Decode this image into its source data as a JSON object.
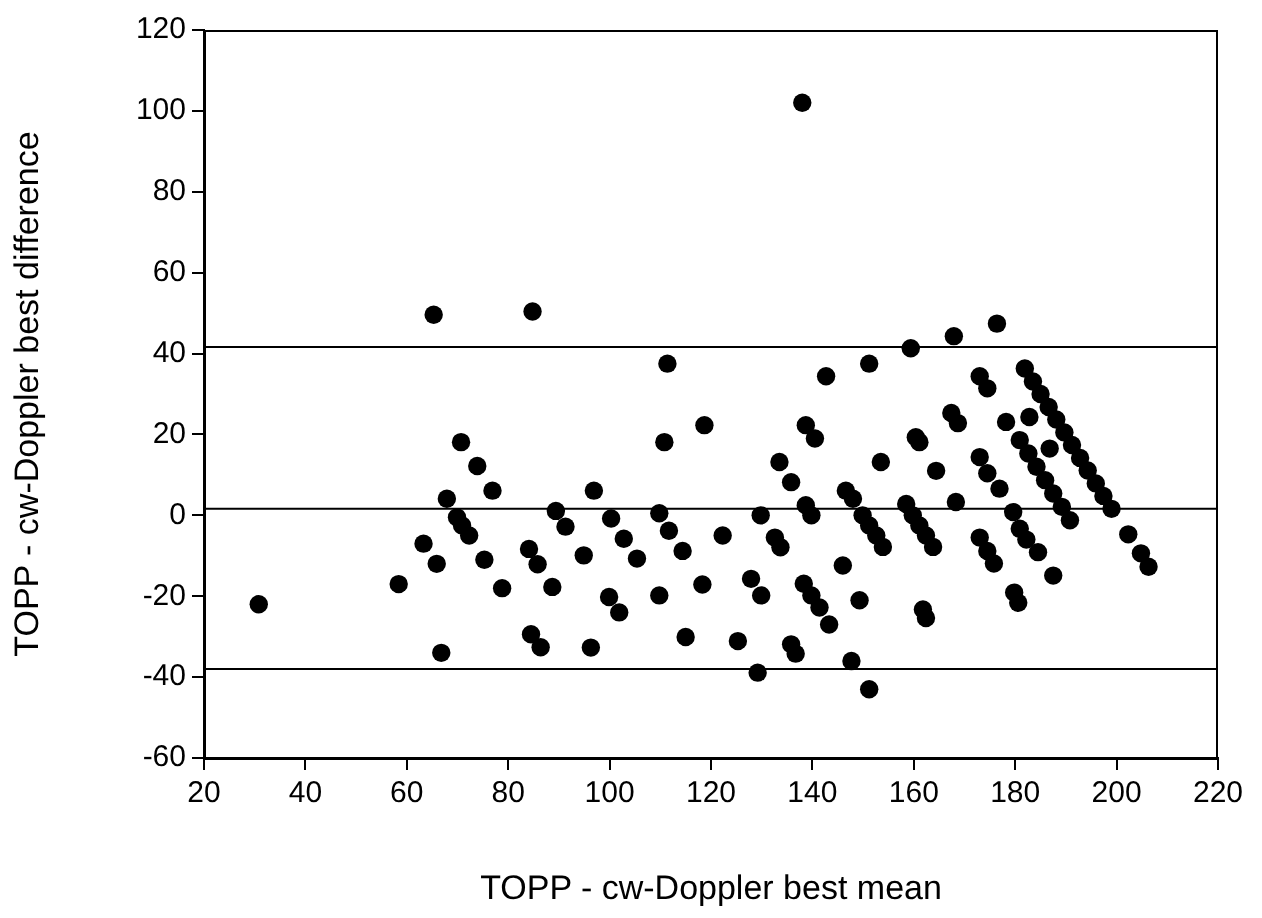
{
  "chart_data": {
    "type": "scatter",
    "xlabel": "TOPP - cw-Doppler best mean",
    "ylabel": "TOPP - cw-Doppler best difference",
    "xlim": [
      20,
      220
    ],
    "xticks": [
      20,
      40,
      60,
      80,
      100,
      120,
      140,
      160,
      180,
      200,
      220
    ],
    "ylim": [
      -60,
      120
    ],
    "yticks": [
      -60,
      -40,
      -20,
      0,
      20,
      40,
      60,
      80,
      100,
      120
    ],
    "grid": false,
    "legend": false,
    "marker": "circle",
    "ref_lines": [
      {
        "axis": "y",
        "value": 41.6,
        "color": "#000000"
      },
      {
        "axis": "y",
        "value": 1.6,
        "color": "#000000"
      },
      {
        "axis": "y",
        "value": -38,
        "color": "#000000"
      }
    ],
    "series": [
      {
        "color": "#000000",
        "x": [
          65.3,
          70.7,
          73.9,
          76.9,
          67.9,
          69.9,
          70.9,
          72.3,
          63.3,
          65.9,
          75.3,
          58.4,
          78.8,
          30.8,
          66.8,
          84.8,
          111.4,
          142.7,
          118.7,
          138.7,
          140.5,
          110.8,
          133.5,
          135.8,
          96.9,
          146.6,
          89.4,
          109.8,
          111.7,
          100.3,
          129.8,
          138.7,
          139.8,
          91.3,
          102.8,
          122.3,
          132.6,
          133.7,
          84.1,
          85.8,
          94.9,
          105.4,
          114.4,
          146,
          88.7,
          99.9,
          101.9,
          109.8,
          118.3,
          127.9,
          129.9,
          138.3,
          139.8,
          141.4,
          143.3,
          149.3,
          84.5,
          86.4,
          96.3,
          115,
          125.3,
          135.8,
          136.7,
          129.2,
          147.7,
          138,
          151.2,
          159.4,
          167.9,
          176.4,
          173,
          174.5,
          181.9,
          183.5,
          185,
          186.6,
          188.1,
          189.7,
          191.2,
          192.8,
          194.3,
          195.9,
          197.4,
          199,
          167.4,
          168.7,
          178.2,
          182.8,
          160.4,
          161.1,
          186.8,
          180.9,
          182.6,
          184.2,
          185.9,
          187.5,
          189.2,
          190.8,
          153.5,
          164.4,
          173,
          174.5,
          176.9,
          148,
          168.3,
          179.6,
          149.9,
          151.2,
          152.6,
          153.9,
          158.5,
          159.8,
          161.1,
          162.4,
          163.8,
          180.9,
          182.2,
          184.5,
          173,
          174.5,
          175.8,
          202.3,
          204.8,
          206.3,
          161.8,
          162.4,
          179.8,
          180.6,
          187.5,
          151.2
        ],
        "values": [
          49.6,
          18.1,
          12.2,
          6.1,
          4.1,
          -0.5,
          -2.5,
          -5,
          -7,
          -12,
          -11,
          -17,
          -18,
          -22,
          -34,
          50.4,
          37.5,
          34.4,
          22.3,
          22.3,
          19,
          18.1,
          13.2,
          8.2,
          6.1,
          6.1,
          1.1,
          0.5,
          -3.8,
          -0.8,
          0,
          2.5,
          0,
          -2.8,
          -5.8,
          -5,
          -5.5,
          -7.9,
          -8.3,
          -12.1,
          -9.9,
          -10.7,
          -8.8,
          -12.4,
          -17.7,
          -20.2,
          -24,
          -19.8,
          -17.1,
          -15.7,
          -19.8,
          -16.9,
          -19.8,
          -22.8,
          -27,
          -21,
          -29.4,
          -32.6,
          -32.7,
          -30.1,
          -31.1,
          -31.9,
          -34.2,
          -38.9,
          -36,
          102,
          37.5,
          41.3,
          44.3,
          47.4,
          34.4,
          31.4,
          36.3,
          33.1,
          30,
          26.8,
          23.7,
          20.5,
          17.4,
          14.2,
          11.1,
          7.9,
          4.8,
          1.6,
          25.3,
          22.8,
          23.1,
          24.3,
          19.3,
          18.1,
          16.5,
          18.6,
          15.3,
          12,
          8.7,
          5.4,
          2.1,
          -1.2,
          13.2,
          11,
          14.4,
          10.4,
          6.6,
          4.1,
          3.3,
          0.8,
          0,
          -2.5,
          -5,
          -7.8,
          2.8,
          0,
          -2.5,
          -5,
          -7.8,
          -3.3,
          -6,
          -9.1,
          -5.5,
          -8.8,
          -11.9,
          -4.7,
          -9.4,
          -12.7,
          -23.3,
          -25.4,
          -19.1,
          -21.6,
          -14.9,
          -43
        ]
      }
    ]
  }
}
